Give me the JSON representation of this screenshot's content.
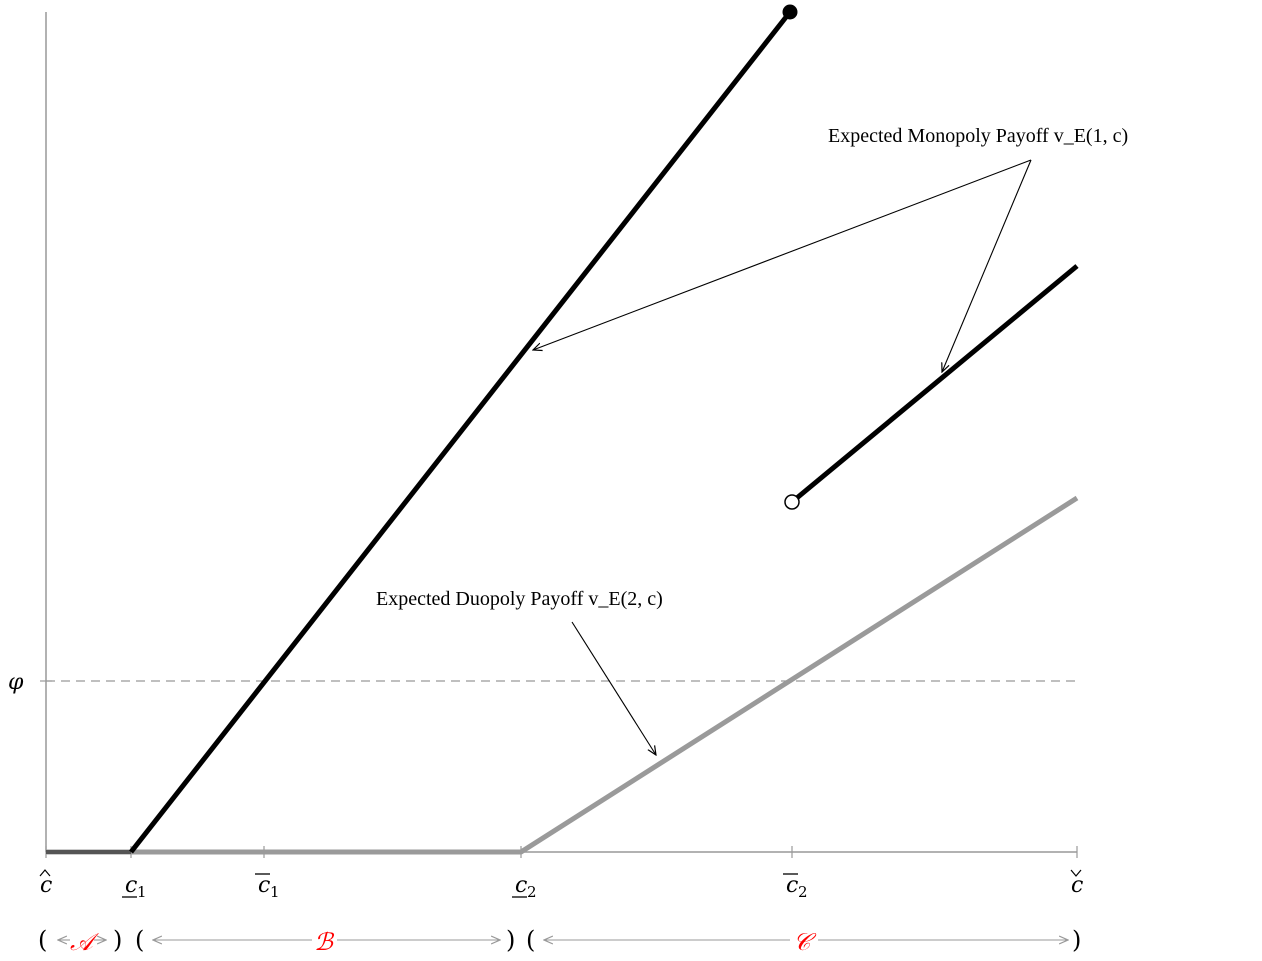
{
  "diagram": {
    "y_axis_label": "φ",
    "x_ticks": [
      {
        "base": "c",
        "accent": "hat",
        "sub": ""
      },
      {
        "base": "c",
        "accent": "underline",
        "sub": "1"
      },
      {
        "base": "c",
        "accent": "overline",
        "sub": "1"
      },
      {
        "base": "c",
        "accent": "underline",
        "sub": "2"
      },
      {
        "base": "c",
        "accent": "overline",
        "sub": "2"
      },
      {
        "base": "c",
        "accent": "check",
        "sub": ""
      }
    ],
    "annotations": {
      "monopoly": "Expected Monopoly Payoff v_E(1, c)",
      "duopoly": "Expected Duopoly Payoff v_E(2, c)"
    },
    "regions": [
      {
        "label": "𝒜",
        "color": "#ff0000"
      },
      {
        "label": "ℬ",
        "color": "#ff0000"
      },
      {
        "label": "𝒞",
        "color": "#ff0000"
      }
    ],
    "colors": {
      "monopoly_line": "#000000",
      "duopoly_line": "#9a9a9a",
      "axis": "#999999",
      "threshold": "#999999",
      "region_label": "#ff0000"
    }
  }
}
